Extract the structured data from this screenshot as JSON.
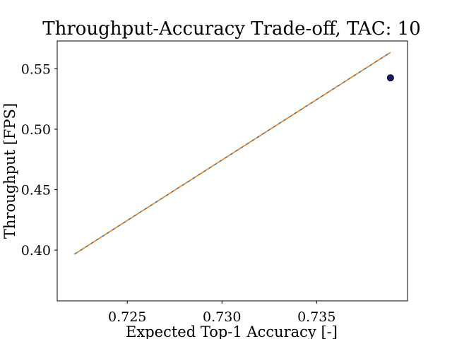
{
  "chart_data": {
    "type": "scatter",
    "title": "Throughput-Accuracy Trade-off, TAC: 10",
    "xlabel": "Expected Top-1 Accuracy [-]",
    "ylabel": "Throughput [FPS]",
    "xlim": [
      0.7213,
      0.7398
    ],
    "ylim": [
      0.358,
      0.573
    ],
    "xticks": [
      0.725,
      0.73,
      0.735
    ],
    "xtick_labels": [
      "0.725",
      "0.730",
      "0.735"
    ],
    "yticks": [
      0.4,
      0.45,
      0.5,
      0.55
    ],
    "ytick_labels": [
      "0.40",
      "0.45",
      "0.50",
      "0.55"
    ],
    "grid": false,
    "points": [
      {
        "x": 0.7389,
        "y": 0.5425,
        "color": "#1a1a6e"
      }
    ],
    "lines": [
      {
        "style": "dashed",
        "color": "#1f77b4",
        "x": [
          0.7222,
          0.7389
        ],
        "y": [
          0.3965,
          0.5635
        ]
      },
      {
        "style": "dashed",
        "color": "#ff7f0e",
        "x": [
          0.7222,
          0.7389
        ],
        "y": [
          0.3965,
          0.5635
        ]
      }
    ]
  }
}
